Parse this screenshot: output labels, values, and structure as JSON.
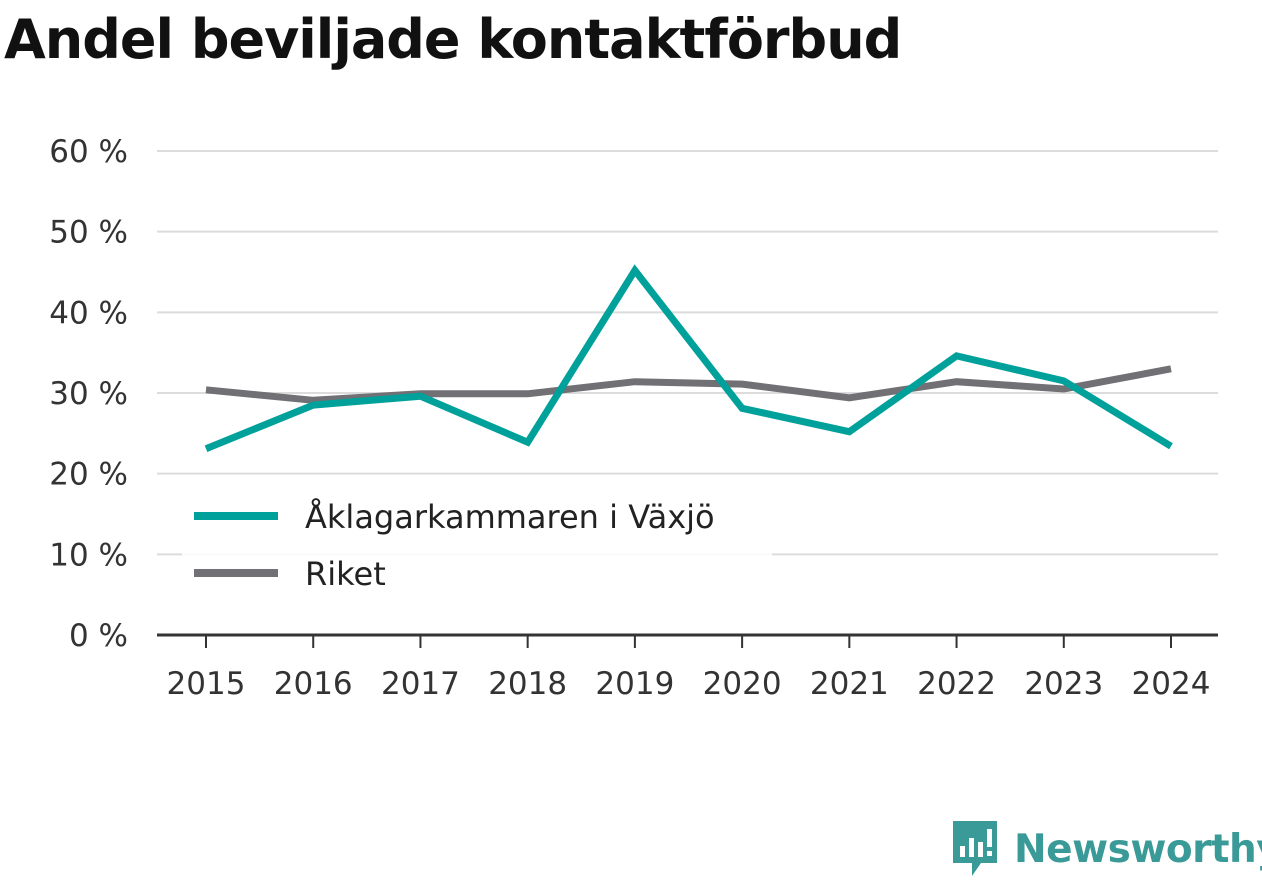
{
  "title": "Andel beviljade kontaktförbud",
  "brand": {
    "name": "Newsworthy",
    "icon": "newsworthy-logo-icon",
    "color": "#3a9a97"
  },
  "chart_data": {
    "type": "line",
    "title": "Andel beviljade kontaktförbud",
    "xlabel": "",
    "ylabel": "",
    "categories": [
      "2015",
      "2016",
      "2017",
      "2018",
      "2019",
      "2020",
      "2021",
      "2022",
      "2023",
      "2024"
    ],
    "ylim": [
      0,
      60
    ],
    "yticks": [
      0,
      10,
      20,
      30,
      40,
      50,
      60
    ],
    "ytick_labels": [
      "0 %",
      "10 %",
      "20 %",
      "30 %",
      "40 %",
      "50 %",
      "60 %"
    ],
    "grid": true,
    "legend_position": "bottom-left",
    "series": [
      {
        "name": "Åklagarkammaren i Växjö",
        "color": "#00a19a",
        "values": [
          23.1,
          28.5,
          29.6,
          23.9,
          45.2,
          28.1,
          25.2,
          34.6,
          31.5,
          23.4
        ]
      },
      {
        "name": "Riket",
        "color": "#707075",
        "values": [
          30.4,
          29.1,
          29.9,
          29.9,
          31.4,
          31.1,
          29.4,
          31.4,
          30.5,
          33.0
        ]
      }
    ]
  }
}
